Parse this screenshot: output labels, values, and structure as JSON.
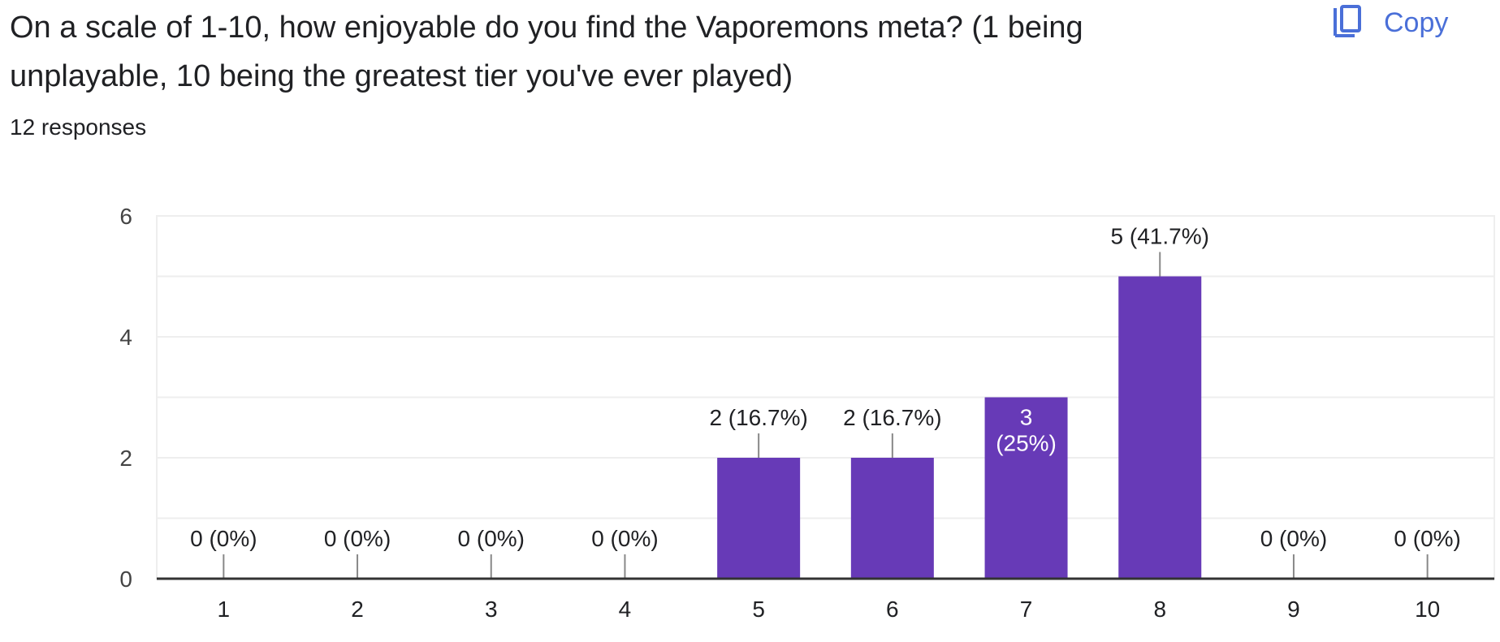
{
  "question": {
    "title": "On a scale of 1-10, how enjoyable do you find the Vaporemons meta? (1 being unplayable, 10 being the greatest tier you've ever played)",
    "responses": "12 responses"
  },
  "copy_button": {
    "label": "Copy",
    "icon": "copy-icon"
  },
  "colors": {
    "bar": "#673ab7",
    "text": "#202124",
    "axis": "#333333",
    "grid": "#eeeeee",
    "accent": "#4a6fd8"
  },
  "chart_data": {
    "type": "bar",
    "categories": [
      "1",
      "2",
      "3",
      "4",
      "5",
      "6",
      "7",
      "8",
      "9",
      "10"
    ],
    "values": [
      0,
      0,
      0,
      0,
      2,
      2,
      3,
      5,
      0,
      0
    ],
    "data_labels": [
      "0 (0%)",
      "0 (0%)",
      "0 (0%)",
      "0 (0%)",
      "2 (16.7%)",
      "2 (16.7%)",
      "3 (25%)",
      "5 (41.7%)",
      "0 (0%)",
      "0 (0%)"
    ],
    "ylim": [
      0,
      6
    ],
    "yticks": [
      0,
      2,
      4,
      6
    ],
    "title": "",
    "xlabel": "",
    "ylabel": "",
    "grid": true
  }
}
